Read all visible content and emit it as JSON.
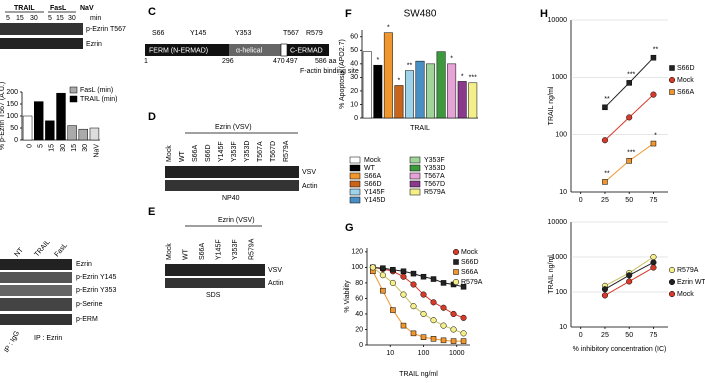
{
  "panels": {
    "A": {
      "treatments": [
        "TRAIL",
        "FasL",
        "NaV"
      ],
      "times": [
        "5",
        "15",
        "30",
        "5",
        "15",
        "30"
      ],
      "time_unit": "min",
      "blot_labels": [
        "p-Ezrin T567",
        "Ezrin"
      ],
      "ip_lanes": [
        "NT",
        "TRAIL",
        "FasL"
      ],
      "ip_labels": [
        "Ezrin",
        "p-Ezrin Y145",
        "p-Ezrin Y353",
        "p-Serine",
        "p-ERM"
      ],
      "ip_igg": "IP : IgG",
      "ip_ezrin": "IP : Ezrin"
    },
    "C": {
      "letter": "C",
      "sites": [
        "S66",
        "Y145",
        "Y353",
        "T567",
        "R579"
      ],
      "domains": [
        "FERM (N-ERMAD)",
        "α-helical",
        "C-ERMAD"
      ],
      "positions": [
        "1",
        "296",
        "470",
        "497",
        "586 aa"
      ],
      "note": "F-actin binding site"
    },
    "D": {
      "letter": "D",
      "header": "Ezrin (VSV)",
      "lanes": [
        "Mock",
        "WT",
        "S66A",
        "S66D",
        "Y145F",
        "Y353F",
        "Y353D",
        "T567A",
        "T567D",
        "R579A"
      ],
      "rows": [
        "VSV",
        "Actin"
      ],
      "buffer": "NP40"
    },
    "E": {
      "letter": "E",
      "header": "Ezrin (VSV)",
      "lanes": [
        "Mock",
        "WT",
        "S66A",
        "Y145F",
        "Y353F",
        "R579A"
      ],
      "rows": [
        "VSV",
        "Actin"
      ],
      "buffer": "SDS"
    },
    "F": {
      "letter": "F"
    },
    "G": {
      "letter": "G"
    },
    "H": {
      "letter": "H"
    }
  },
  "chart_data": [
    {
      "type": "bar",
      "ylabel": "% p-Ezrin T567 (A.U.)",
      "categories": [
        "0",
        "5",
        "15",
        "30",
        "15",
        "30",
        "NaV"
      ],
      "values": [
        100,
        160,
        80,
        195,
        60,
        45,
        50
      ],
      "colors": [
        "#ffffff",
        "#000000",
        "#000000",
        "#000000",
        "#aaaaaa",
        "#aaaaaa",
        "#dddddd"
      ],
      "ylim": [
        0,
        200
      ],
      "yticks": [
        0,
        50,
        100,
        150,
        200
      ],
      "legend": [
        {
          "name": "FasL (min)",
          "color": "#aaaaaa"
        },
        {
          "name": "TRAIL (min)",
          "color": "#000000"
        }
      ]
    },
    {
      "type": "bar",
      "title": "SW480",
      "ylabel": "% Apoptosis (APO2.7)",
      "xlabel": "TRAIL",
      "categories": [
        "Mock",
        "WT",
        "S66A",
        "S66D",
        "Y145F",
        "Y145D",
        "Y353F",
        "Y353D",
        "T567A",
        "T567D",
        "R579A"
      ],
      "values": [
        49,
        39,
        63,
        24,
        35,
        42,
        40,
        49,
        40,
        27,
        26
      ],
      "stars": [
        null,
        "*",
        "*",
        "*",
        "**",
        null,
        null,
        null,
        "*",
        "*",
        "***"
      ],
      "colors": [
        "#ffffff",
        "#000000",
        "#f0962e",
        "#c8651a",
        "#9ed3ea",
        "#4a8fc4",
        "#9fd49a",
        "#3c9a3c",
        "#e6a3d6",
        "#8a3a8a",
        "#f5ef8a"
      ],
      "ylim": [
        0,
        65
      ],
      "yticks": [
        0,
        10,
        20,
        30,
        40,
        50,
        60
      ],
      "legend": "below"
    },
    {
      "type": "line",
      "xlabel": "TRAIL ng/ml",
      "ylabel": "% Viability",
      "xlog": true,
      "xlim": [
        2,
        2500
      ],
      "xticks": [
        10,
        100,
        1000
      ],
      "ylim": [
        0,
        125
      ],
      "yticks": [
        0,
        20,
        40,
        60,
        80,
        100,
        120
      ],
      "x": [
        3,
        6,
        12,
        25,
        50,
        100,
        200,
        400,
        800,
        1600
      ],
      "legend": "top-right",
      "series": [
        {
          "name": "Mock",
          "color": "#d63a2a",
          "marker": "circle",
          "values": [
            100,
            98,
            95,
            88,
            78,
            65,
            55,
            48,
            40,
            35
          ]
        },
        {
          "name": "S66D",
          "color": "#222222",
          "marker": "square",
          "values": [
            100,
            99,
            97,
            95,
            92,
            88,
            85,
            80,
            78,
            75
          ]
        },
        {
          "name": "S66A",
          "color": "#f0962e",
          "marker": "square",
          "values": [
            95,
            70,
            45,
            25,
            15,
            10,
            8,
            6,
            5,
            5
          ]
        },
        {
          "name": "R579A",
          "color": "#f5ef8a",
          "marker": "circle",
          "values": [
            100,
            90,
            80,
            65,
            50,
            40,
            32,
            25,
            20,
            15
          ]
        }
      ]
    },
    {
      "type": "line",
      "ylabel": "TRAIL ng/ml",
      "ylog": true,
      "ylim": [
        10,
        10000
      ],
      "yticks": [
        10,
        100,
        1000,
        10000
      ],
      "xlim": [
        -10,
        90
      ],
      "xticks": [
        0,
        25,
        50,
        75
      ],
      "x": [
        25,
        50,
        75
      ],
      "legend": "right",
      "grid": true,
      "series": [
        {
          "name": "S66D",
          "color": "#222222",
          "marker": "square",
          "values": [
            300,
            800,
            2200
          ],
          "stars": [
            "**",
            "***",
            "**"
          ]
        },
        {
          "name": "Mock",
          "color": "#d63a2a",
          "marker": "circle",
          "values": [
            80,
            200,
            500
          ]
        },
        {
          "name": "S66A",
          "color": "#f0962e",
          "marker": "square",
          "values": [
            15,
            35,
            70
          ],
          "stars": [
            "**",
            "***",
            "*"
          ]
        }
      ]
    },
    {
      "type": "line",
      "ylabel": "TRAIL ng/ml",
      "xlabel": "% inhibitory concentration (IC)",
      "ylog": true,
      "ylim": [
        10,
        10000
      ],
      "yticks": [
        10,
        100,
        1000,
        10000
      ],
      "xlim": [
        -10,
        90
      ],
      "xticks": [
        0,
        25,
        50,
        75
      ],
      "x": [
        25,
        50,
        75
      ],
      "legend": "right",
      "grid": true,
      "series": [
        {
          "name": "R579A",
          "color": "#f5ef8a",
          "marker": "circle",
          "values": [
            150,
            350,
            1000
          ]
        },
        {
          "name": "Ezrin WT",
          "color": "#222222",
          "marker": "circle",
          "values": [
            120,
            300,
            700
          ]
        },
        {
          "name": "Mock",
          "color": "#d63a2a",
          "marker": "circle",
          "values": [
            80,
            200,
            500
          ]
        }
      ]
    }
  ]
}
